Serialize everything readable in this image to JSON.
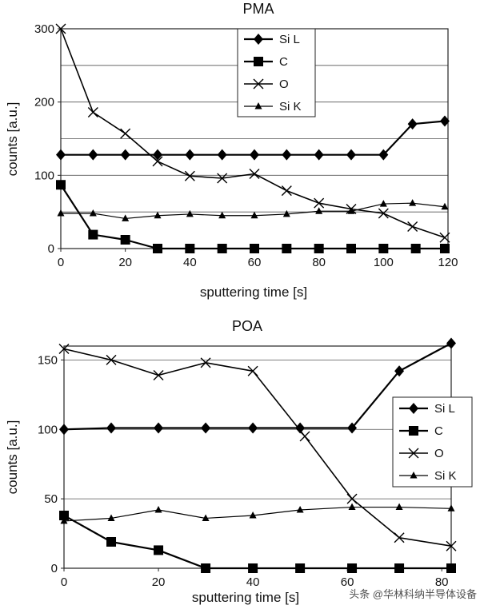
{
  "chart_data": [
    {
      "type": "line",
      "title": "PMA",
      "xlabel": "sputtering time [s]",
      "ylabel": "counts [a.u.]",
      "xlim": [
        0,
        120
      ],
      "ylim": [
        0,
        300
      ],
      "xticks": [
        0,
        20,
        40,
        60,
        80,
        100,
        120
      ],
      "yticks": [
        0,
        100,
        200,
        300
      ],
      "gridlines": [
        50,
        100,
        150,
        200,
        250,
        300
      ],
      "legend_position": "top-center",
      "series": [
        {
          "name": "Si L",
          "marker": "diamond",
          "x": [
            0,
            10,
            20,
            30,
            40,
            50,
            60,
            70,
            80,
            90,
            100,
            109,
            119
          ],
          "y": [
            128,
            128,
            128,
            128,
            128,
            128,
            128,
            128,
            128,
            128,
            128,
            170,
            174
          ]
        },
        {
          "name": "C",
          "marker": "square",
          "x": [
            0,
            10,
            20,
            30,
            40,
            50,
            60,
            70,
            80,
            90,
            100,
            110,
            119
          ],
          "y": [
            87,
            19,
            12,
            0,
            0,
            0,
            0,
            0,
            0,
            0,
            0,
            0,
            0
          ]
        },
        {
          "name": "O",
          "marker": "x",
          "x": [
            0,
            10,
            20,
            30,
            40,
            50,
            60,
            70,
            80,
            90,
            100,
            109,
            119
          ],
          "y": [
            300,
            186,
            157,
            119,
            99,
            96,
            102,
            79,
            62,
            54,
            48,
            30,
            15
          ]
        },
        {
          "name": "Si K",
          "marker": "triangle",
          "x": [
            0,
            10,
            20,
            30,
            40,
            50,
            60,
            70,
            80,
            90,
            100,
            109,
            119
          ],
          "y": [
            48,
            48,
            41,
            45,
            47,
            45,
            45,
            47,
            51,
            51,
            61,
            62,
            57
          ]
        }
      ]
    },
    {
      "type": "line",
      "title": "POA",
      "xlabel": "sputtering time [s]",
      "ylabel": "counts [a.u.]",
      "xlim": [
        0,
        82
      ],
      "ylim": [
        0,
        160
      ],
      "xticks": [
        0,
        20,
        40,
        60,
        80
      ],
      "yticks": [
        0,
        50,
        100,
        150
      ],
      "gridlines": [
        50,
        100,
        150
      ],
      "legend_position": "right",
      "series": [
        {
          "name": "Si L",
          "marker": "diamond",
          "x": [
            0,
            10,
            20,
            30,
            40,
            50,
            61,
            71,
            82
          ],
          "y": [
            100,
            101,
            101,
            101,
            101,
            101,
            101,
            142,
            162
          ]
        },
        {
          "name": "C",
          "marker": "square",
          "x": [
            0,
            10,
            20,
            30,
            40,
            50,
            61,
            71,
            82
          ],
          "y": [
            38,
            19,
            13,
            0,
            0,
            0,
            0,
            0,
            0
          ]
        },
        {
          "name": "O",
          "marker": "x",
          "x": [
            0,
            10,
            20,
            30,
            40,
            51,
            61,
            71,
            82
          ],
          "y": [
            158,
            150,
            139,
            148,
            142,
            95,
            50,
            22,
            16
          ]
        },
        {
          "name": "Si K",
          "marker": "triangle",
          "x": [
            0,
            10,
            20,
            30,
            40,
            50,
            61,
            71,
            82
          ],
          "y": [
            34,
            36,
            42,
            36,
            38,
            42,
            44,
            44,
            43
          ]
        }
      ]
    }
  ],
  "watermark": {
    "text": "头条 @华林科纳半导体设备"
  }
}
